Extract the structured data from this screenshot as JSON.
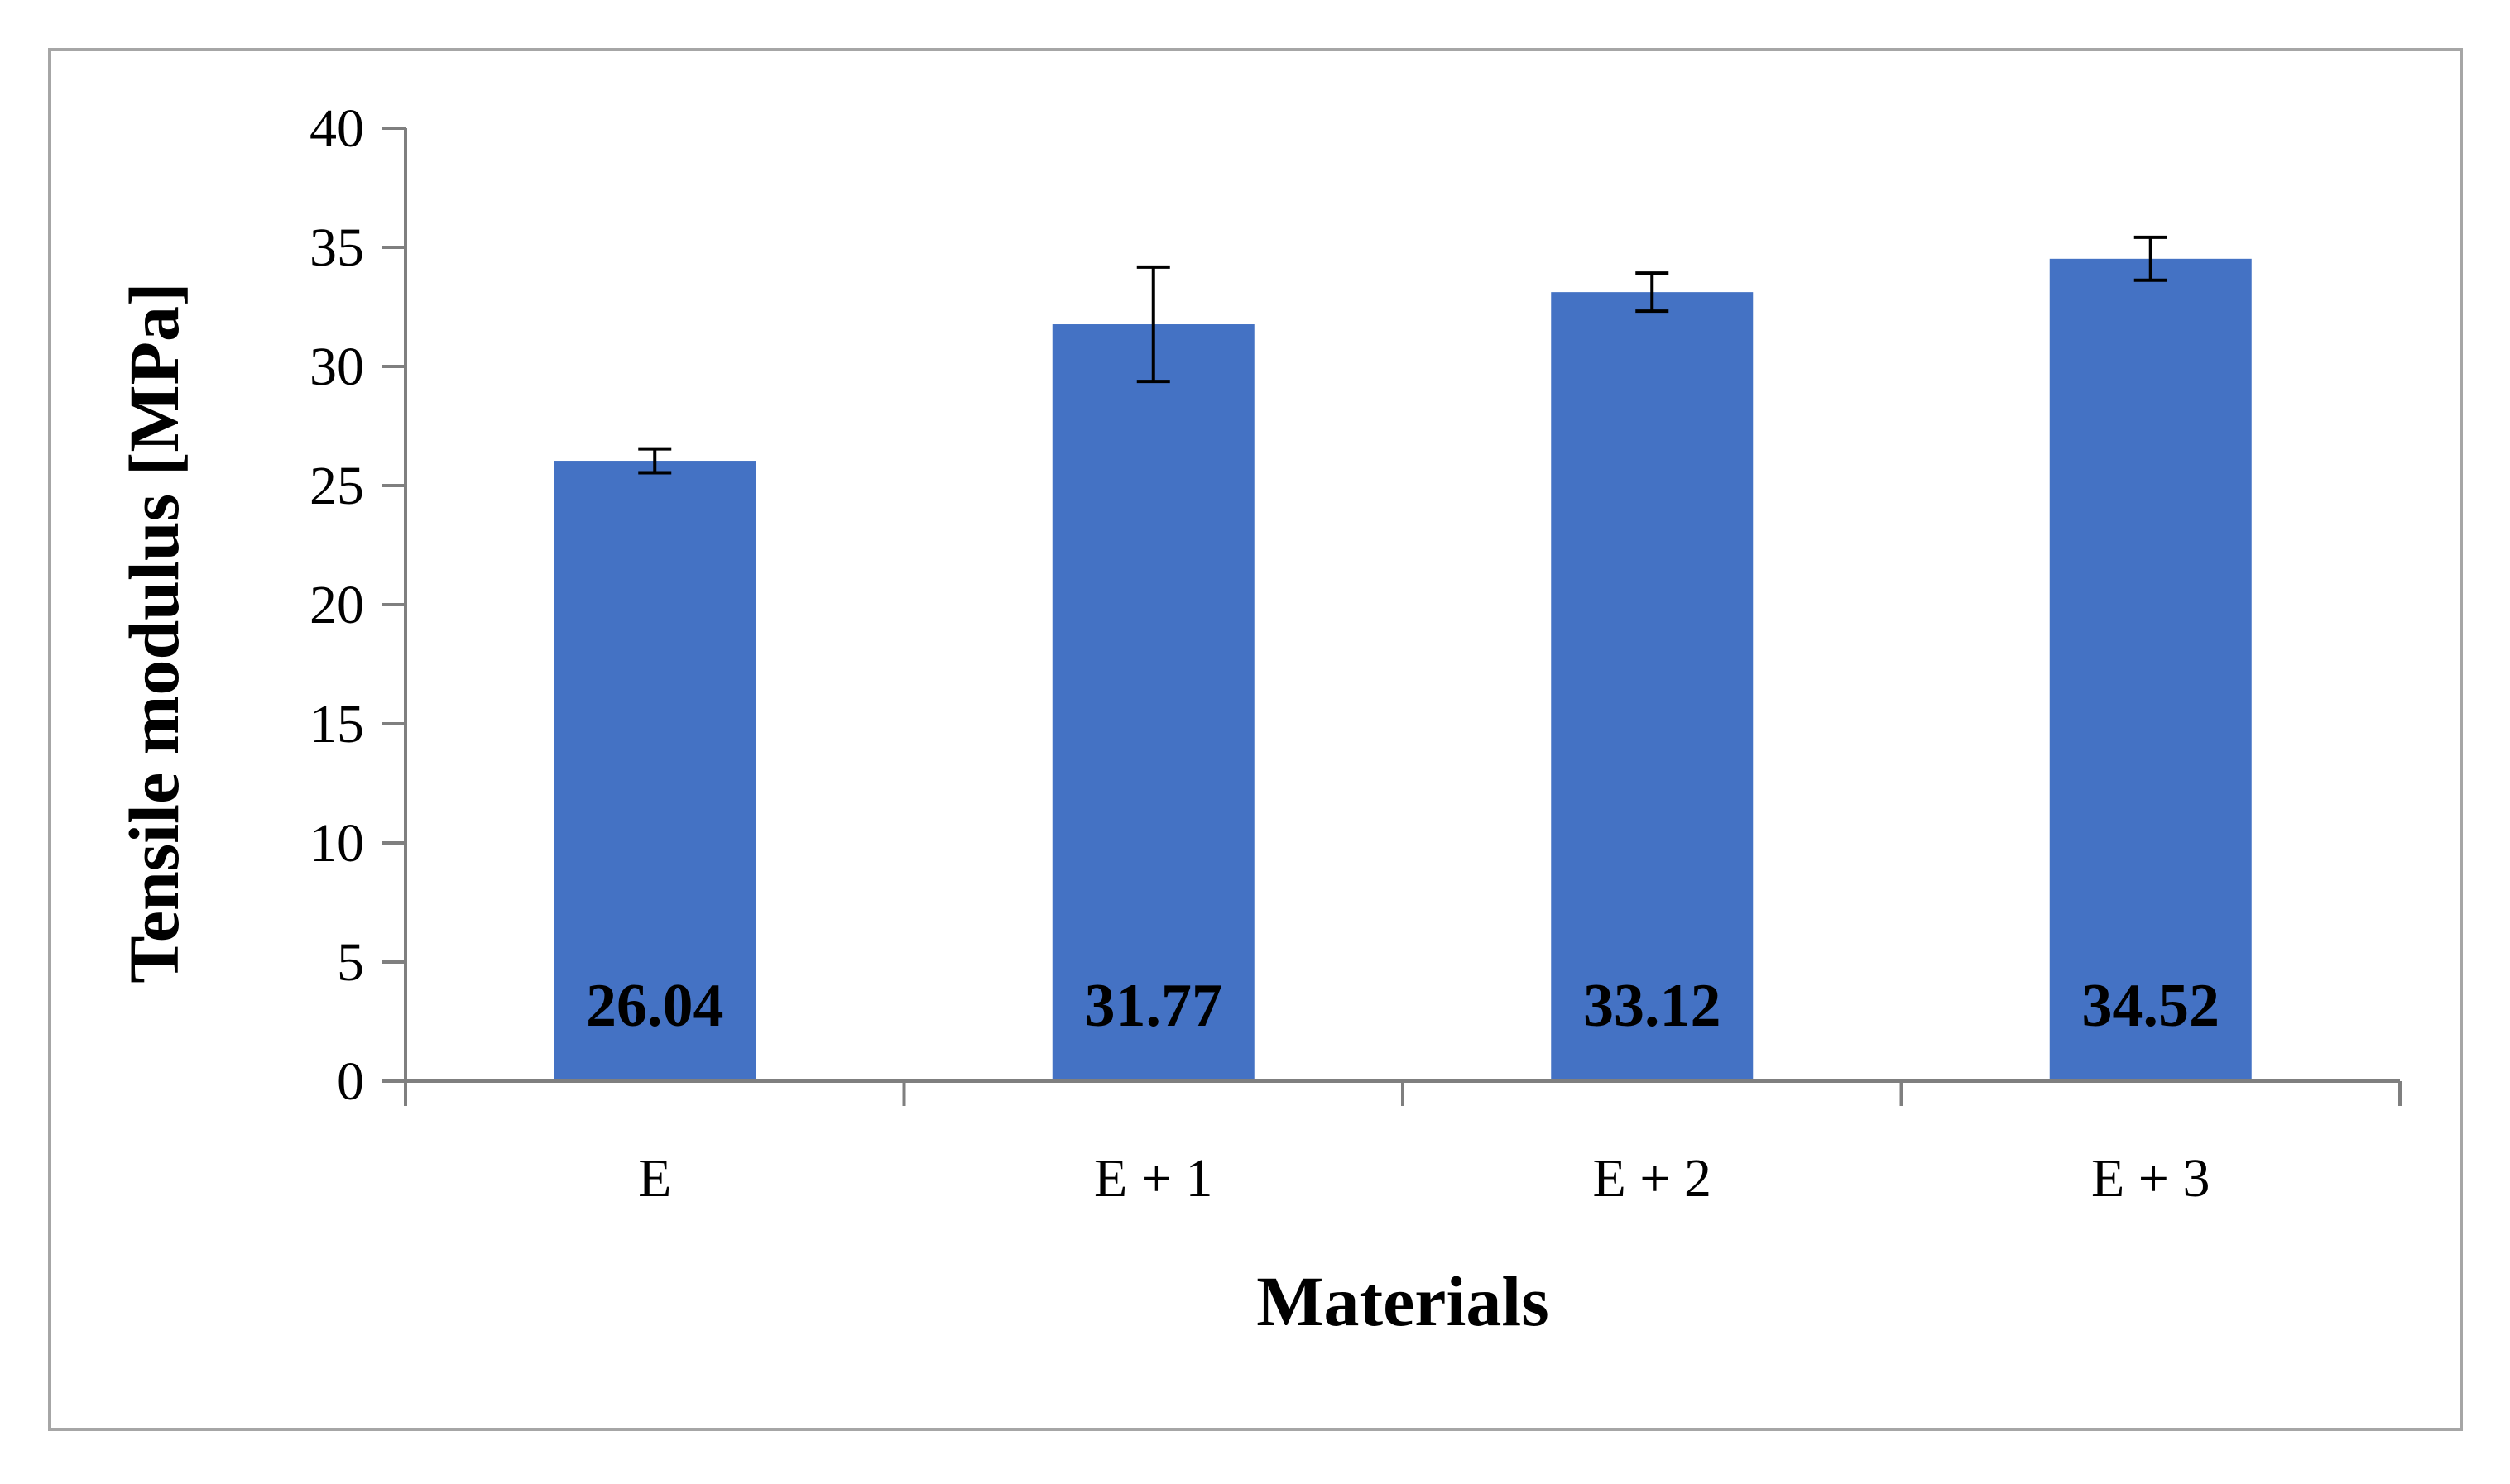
{
  "chart_data": {
    "type": "bar",
    "title": "",
    "xlabel": "Materials",
    "ylabel": "Tensile modulus [MPa]",
    "categories": [
      "E",
      "E + 1",
      "E + 2",
      "E + 3"
    ],
    "values": [
      26.04,
      31.77,
      33.12,
      34.52
    ],
    "data_labels": [
      "26.04",
      "31.77",
      "33.12",
      "34.52"
    ],
    "error_bars": [
      0.5,
      2.4,
      0.8,
      0.9
    ],
    "ylim": [
      0,
      40
    ],
    "yticks": [
      0,
      5,
      10,
      15,
      20,
      25,
      30,
      35,
      40
    ],
    "grid": false,
    "legend": "none",
    "colors": {
      "bar": "#4472c4",
      "axis": "#7f7f7f",
      "frame": "#a6a6a6",
      "error_bar": "#000000",
      "text": "#000000"
    }
  }
}
